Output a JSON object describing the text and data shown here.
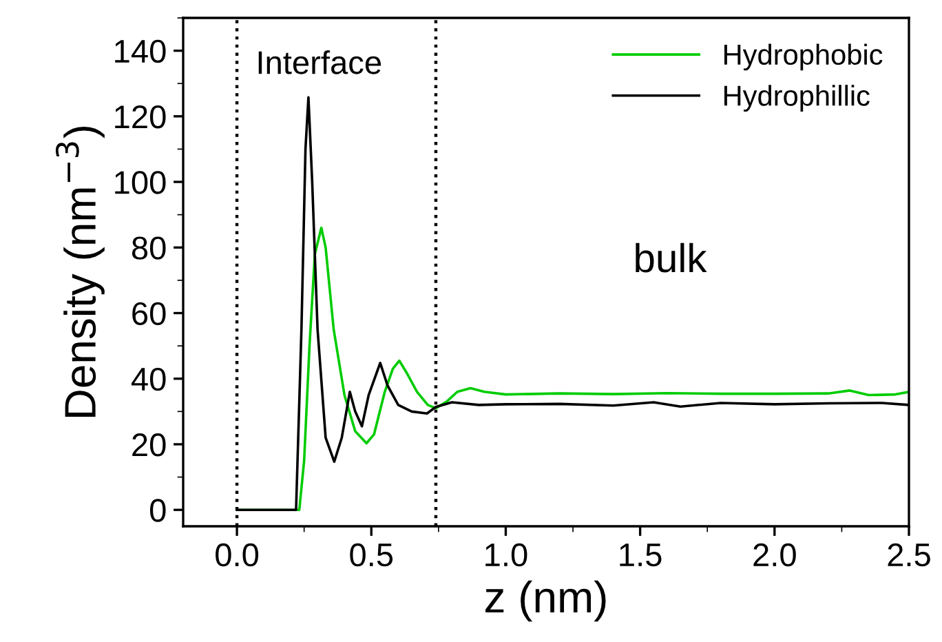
{
  "chart_data": {
    "type": "line",
    "xlabel": "z (nm)",
    "ylabel": "Density (nm$^{−3}$)",
    "xlim": [
      -0.2,
      2.5
    ],
    "xticks": [
      {
        "value": 0,
        "label": "0.0"
      },
      0.5,
      {
        "value": 1,
        "label": "1.0"
      },
      1.5,
      {
        "value": 2,
        "label": "2.0"
      },
      2.5
    ],
    "ylim": [
      -5,
      150
    ],
    "yticks": [
      0,
      20,
      40,
      60,
      80,
      100,
      120,
      140
    ],
    "series": [
      {
        "name": "Hydrophobic",
        "color": "#00cc00",
        "x": [
          0,
          0.1,
          0.2,
          0.232,
          0.25,
          0.27,
          0.29,
          0.314,
          0.33,
          0.36,
          0.4,
          0.44,
          0.482,
          0.51,
          0.55,
          0.58,
          0.604,
          0.63,
          0.67,
          0.71,
          0.74,
          0.78,
          0.82,
          0.869,
          0.92,
          1.0,
          1.2,
          1.4,
          1.6,
          1.8,
          2.0,
          2.2,
          2.28,
          2.35,
          2.45,
          2.5
        ],
        "values": [
          0,
          0,
          0,
          0,
          15,
          50,
          78,
          86,
          80,
          55,
          35,
          24,
          20.3,
          23,
          36,
          43,
          45.5,
          42,
          36,
          32,
          31,
          33,
          36,
          37.1,
          36,
          35.2,
          35.5,
          35.3,
          35.6,
          35.4,
          35.4,
          35.5,
          36.4,
          35,
          35.2,
          36
        ]
      },
      {
        "name": "Hydrophillic",
        "color": "#000000",
        "x": [
          0,
          0.1,
          0.2,
          0.22,
          0.24,
          0.255,
          0.266,
          0.28,
          0.3,
          0.33,
          0.362,
          0.39,
          0.42,
          0.44,
          0.465,
          0.49,
          0.533,
          0.56,
          0.6,
          0.65,
          0.707,
          0.74,
          0.8,
          0.9,
          1.0,
          1.2,
          1.4,
          1.55,
          1.65,
          1.8,
          2.0,
          2.2,
          2.4,
          2.5
        ],
        "values": [
          0,
          0,
          0,
          0,
          55,
          110,
          125.8,
          100,
          55,
          22,
          14.7,
          22,
          36,
          30,
          25.5,
          35,
          44.8,
          38,
          32,
          30,
          29.4,
          31.4,
          32.8,
          32,
          32.2,
          32.3,
          31.8,
          32.8,
          31.5,
          32.6,
          32.2,
          32.5,
          32.6,
          32
        ]
      }
    ],
    "ref_lines": [
      {
        "axis": "x",
        "value": 0,
        "line_style": "dotted",
        "color": "#000000"
      },
      {
        "axis": "x",
        "value": 0.74,
        "line_style": "dotted",
        "color": "#000000"
      }
    ],
    "annotations": [
      "Interface",
      "bulk"
    ],
    "legend": "top right",
    "grid": false
  }
}
